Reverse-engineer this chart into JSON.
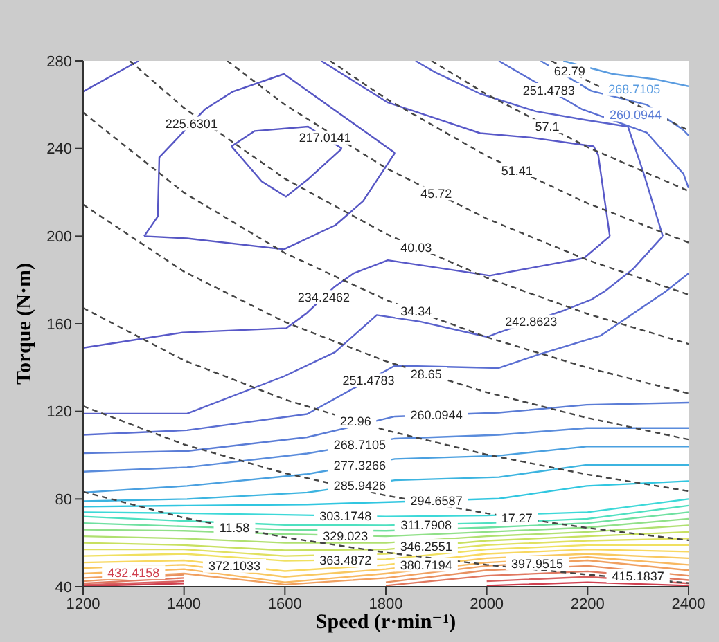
{
  "chart_data": {
    "type": "line",
    "xlabel": "Speed (r·min⁻¹)",
    "ylabel": "Torque (N·m)",
    "xlim": [
      1200,
      2400
    ],
    "xticks": [
      1200,
      1400,
      1600,
      1800,
      2000,
      2200,
      2400
    ],
    "ylim": [
      40,
      280
    ],
    "yticks": [
      40,
      80,
      120,
      160,
      200,
      240,
      280
    ],
    "marker": "none",
    "line_style": "solid",
    "series": [
      {
        "name": "217.0141",
        "color": "#5656c4",
        "x": [
          1494,
          1540,
          1646,
          1713
        ],
        "values": [
          241,
          248,
          250,
          240
        ]
      },
      {
        "color": "#5656c4",
        "x": [
          1494,
          1554,
          1602,
          1646,
          1713
        ],
        "values": [
          241,
          225,
          218,
          226,
          240
        ]
      },
      {
        "name": "225.6301",
        "color": "#5656c4",
        "x": [
          1321,
          1348,
          1351,
          1442,
          1497,
          1598,
          1818
        ],
        "values": [
          200,
          209,
          236,
          258,
          266,
          274,
          238
        ]
      },
      {
        "color": "#5656c4",
        "x": [
          1321,
          1406,
          1598,
          1700,
          1755,
          1818
        ],
        "values": [
          200,
          199,
          194,
          205,
          216,
          238
        ]
      },
      {
        "color": "#5656c4",
        "x": [
          1200,
          1310
        ],
        "values": [
          266,
          280
        ]
      },
      {
        "name": "234.2462",
        "color": "#5858c8",
        "x": [
          1200,
          1397,
          1603,
          1644,
          1699,
          1736,
          1804,
          2006,
          2193,
          2244
        ],
        "values": [
          149,
          156,
          158,
          165,
          177,
          183,
          189,
          182,
          190,
          200
        ]
      },
      {
        "color": "#5858c8",
        "x": [
          1672,
          1804,
          1896,
          1987,
          2088,
          2212,
          2221,
          2244
        ],
        "values": [
          280,
          261,
          254,
          247,
          245,
          241,
          237,
          200
        ]
      },
      {
        "name": "242.8623",
        "color": "#5a62cc",
        "x": [
          1200,
          1406,
          1598,
          1699,
          1782,
          1868,
          2001,
          2024,
          2152,
          2207,
          2235,
          2290,
          2349
        ],
        "values": [
          119,
          119,
          136,
          147,
          164,
          161,
          154,
          156,
          166,
          171,
          175,
          185,
          200
        ]
      },
      {
        "color": "#5a62cc",
        "x": [
          1859,
          1896,
          1987,
          2097,
          2197,
          2280,
          2312,
          2349
        ],
        "values": [
          280,
          275,
          265,
          257,
          253,
          250,
          228,
          200
        ]
      },
      {
        "name": "251.4783",
        "color": "#5a6ed2",
        "x": [
          1200,
          1406,
          1644,
          1818,
          2024,
          2106,
          2226,
          2354,
          2400
        ],
        "values": [
          109.3,
          111.4,
          118.8,
          140.9,
          139.8,
          146.2,
          154.6,
          174.6,
          183
        ]
      },
      {
        "name": "251.4783",
        "color": "#5a6ed2",
        "x": [
          2024,
          2189,
          2317,
          2390,
          2400
        ],
        "values": [
          280,
          257.9,
          247.3,
          228.4,
          222
        ]
      },
      {
        "name": "260.0944",
        "color": "#5a7cd6",
        "x": [
          1200,
          1406,
          1644,
          1818,
          2024,
          2198,
          2400
        ],
        "values": [
          100.9,
          101.9,
          108.2,
          117.7,
          119.4,
          123,
          124
        ]
      },
      {
        "name": "260.0944",
        "color": "#5a7cd6",
        "x": [
          2107,
          2207,
          2317,
          2390,
          2400
        ],
        "values": [
          280,
          266.3,
          260,
          248.4,
          246
        ]
      },
      {
        "name": "268.7105",
        "color": "#5a8cdc",
        "x": [
          1200,
          1406,
          1644,
          1818,
          2024,
          2198,
          2400
        ],
        "values": [
          92.5,
          94.5,
          100.8,
          107.6,
          109.3,
          112.4,
          112.4
        ]
      },
      {
        "name": "268.7105",
        "color": "#5a9ce0",
        "x": [
          2152,
          2250,
          2335,
          2400
        ],
        "values": [
          280,
          274,
          271.6,
          268.4
        ]
      },
      {
        "name": "277.3266",
        "color": "#4aa0e0",
        "x": [
          1200,
          1406,
          1644,
          1818,
          2024,
          2198,
          2400
        ],
        "values": [
          83,
          86,
          91.4,
          98.3,
          99.8,
          104,
          104
        ]
      },
      {
        "name": "285.9426",
        "color": "#3cb4e0",
        "x": [
          1200,
          1406,
          1644,
          1818,
          2024,
          2198,
          2400
        ],
        "values": [
          79,
          80,
          83,
          88.6,
          90,
          95.6,
          95.6
        ]
      },
      {
        "name": "294.6587",
        "color": "#30c6e0",
        "x": [
          1200,
          1406,
          1644,
          1818,
          2024,
          2198,
          2400
        ],
        "values": [
          76.5,
          77,
          77.5,
          78.7,
          80.2,
          86,
          88.2
        ]
      },
      {
        "name": "303.1748",
        "color": "#3cd8d8",
        "x": [
          1200,
          1400,
          1600,
          1800,
          2000,
          2200,
          2400
        ],
        "values": [
          74,
          73.5,
          72.8,
          72,
          72.5,
          74,
          80
        ]
      },
      {
        "name": "311.7908",
        "color": "#4ee0c0",
        "x": [
          1200,
          1400,
          1600,
          1800,
          2000,
          2200,
          2400
        ],
        "values": [
          72,
          70,
          68.2,
          68,
          69,
          71,
          77
        ]
      },
      {
        "color": "#6ee0a0",
        "x": [
          1200,
          1400,
          1600,
          1800,
          2000,
          2200,
          2400
        ],
        "values": [
          69,
          67.5,
          66,
          65.5,
          67,
          69,
          74
        ]
      },
      {
        "name": "329.023",
        "color": "#90e088",
        "x": [
          1200,
          1400,
          1600,
          1800,
          2000,
          2200,
          2400
        ],
        "values": [
          66,
          65.5,
          64,
          63,
          65,
          67,
          71
        ]
      },
      {
        "color": "#b0e070",
        "x": [
          1200,
          1400,
          1600,
          1800,
          2000,
          2200,
          2400
        ],
        "values": [
          63,
          62,
          60,
          60,
          63,
          65,
          68
        ]
      },
      {
        "name": "346.2551",
        "color": "#c8e060",
        "x": [
          1200,
          1400,
          1600,
          1800,
          2000,
          2200,
          2400
        ],
        "values": [
          60,
          59,
          56.6,
          57,
          61,
          63,
          65
        ]
      },
      {
        "color": "#e0e060",
        "x": [
          1200,
          1400,
          1600,
          1800,
          2000,
          2200,
          2400
        ],
        "values": [
          57,
          57,
          54,
          55,
          59,
          61,
          62
        ]
      },
      {
        "name": "363.4872",
        "color": "#f0e060",
        "x": [
          1200,
          1400,
          1600,
          1800,
          2000,
          2200,
          2400
        ],
        "values": [
          54,
          55,
          51.8,
          52.5,
          57,
          59,
          59
        ]
      },
      {
        "name": "372.1033",
        "color": "#f8d860",
        "x": [
          1200,
          1400,
          1600,
          1800,
          2000,
          2200,
          2400
        ],
        "values": [
          51,
          52,
          47.1,
          50,
          55,
          57,
          56
        ]
      },
      {
        "name": "380.7194",
        "color": "#f8c860",
        "x": [
          1200,
          1400,
          1600,
          1800,
          2000,
          2200,
          2400
        ],
        "values": [
          48.5,
          50,
          44.5,
          48,
          53,
          55,
          53
        ]
      },
      {
        "color": "#f8b860",
        "x": [
          1200,
          1400,
          1600,
          1800,
          2000,
          2200,
          2400
        ],
        "values": [
          46,
          48,
          42,
          46,
          51,
          53.5,
          50
        ]
      },
      {
        "name": "397.9515",
        "color": "#f0a060",
        "x": [
          1200,
          1400,
          1600,
          1800,
          2000,
          2200,
          2400
        ],
        "values": [
          44,
          46,
          41,
          44,
          49.5,
          52,
          47.5
        ]
      },
      {
        "color": "#e89060",
        "x": [
          1200,
          1400,
          1600,
          1800,
          2000,
          2200,
          2400
        ],
        "values": [
          42.5,
          45.5,
          null,
          42,
          47.5,
          49.5,
          45
        ]
      },
      {
        "name": "415.1837",
        "color": "#e07860",
        "x": [
          1200,
          1400,
          1600,
          1800,
          2000,
          2200,
          2400
        ],
        "values": [
          41.5,
          44,
          null,
          40.5,
          45,
          47,
          43
        ]
      },
      {
        "color": "#d86060",
        "x": [
          1200,
          1400,
          1600,
          1800,
          2000,
          2200,
          2400
        ],
        "values": [
          40.8,
          42.5,
          null,
          null,
          42.5,
          44.5,
          41.5
        ]
      },
      {
        "name": "432.4158",
        "color": "#d04050",
        "x": [
          1200,
          1400,
          1600,
          1800,
          2000,
          2200,
          2400
        ],
        "values": [
          40.3,
          41.5,
          null,
          null,
          40.5,
          42,
          40.5
        ]
      },
      {
        "name": "11.58",
        "color": "#444444",
        "line_style": "dashed",
        "x": [
          1200,
          1400,
          1600,
          1800,
          2000,
          2200,
          2400
        ],
        "values": [
          83.3,
          71.4,
          62.5,
          55.6,
          50,
          45.5,
          41.7
        ]
      },
      {
        "name": "17.27",
        "color": "#444444",
        "line_style": "dashed",
        "x": [
          1200,
          1400,
          1600,
          1800,
          2000,
          2200,
          2400
        ],
        "values": [
          122.4,
          104.9,
          91.8,
          81.6,
          73.5,
          66.8,
          61.2
        ]
      },
      {
        "name": "22.96",
        "color": "#444444",
        "line_style": "dashed",
        "x": [
          1200,
          1400,
          1600,
          1800,
          2000,
          2200,
          2400
        ],
        "values": [
          167.2,
          143.3,
          125.4,
          111.4,
          100.3,
          91.2,
          83.6
        ]
      },
      {
        "name": "28.65",
        "color": "#444444",
        "line_style": "dashed",
        "x": [
          1200,
          1400,
          1600,
          1800,
          2000,
          2200,
          2400
        ],
        "values": [
          214.4,
          183.8,
          160.8,
          142.9,
          128.7,
          117,
          107.2
        ]
      },
      {
        "name": "34.34",
        "color": "#444444",
        "line_style": "dashed",
        "x": [
          1200,
          1400,
          1600,
          1800,
          2000,
          2200,
          2400
        ],
        "values": [
          256.4,
          219.8,
          192.3,
          170.9,
          153.9,
          139.9,
          128.2
        ]
      },
      {
        "name": "40.03",
        "color": "#444444",
        "line_style": "dashed",
        "x": [
          1292.5,
          1400,
          1600,
          1800,
          2000,
          2200,
          2400
        ],
        "values": [
          280,
          258.5,
          226.2,
          201.1,
          181,
          164.5,
          150.8
        ]
      },
      {
        "name": "45.72",
        "color": "#444444",
        "line_style": "dashed",
        "x": [
          1485.7,
          1600,
          1800,
          2000,
          2200,
          2400
        ],
        "values": [
          280,
          260,
          231.1,
          208,
          189.1,
          173.3
        ]
      },
      {
        "name": "51.41",
        "color": "#444444",
        "line_style": "dashed",
        "x": [
          1689.6,
          1800,
          2000,
          2200,
          2400
        ],
        "values": [
          280,
          262.8,
          236.6,
          215,
          197.1
        ]
      },
      {
        "name": "57.1",
        "color": "#444444",
        "line_style": "dashed",
        "x": [
          1890.7,
          2000,
          2200,
          2400
        ],
        "values": [
          280,
          264.7,
          240.6,
          220.6
        ]
      },
      {
        "name": "62.79",
        "color": "#444444",
        "line_style": "dashed",
        "x": [
          2128.6,
          2200,
          2400
        ],
        "values": [
          280,
          270.9,
          248.3
        ]
      }
    ]
  }
}
